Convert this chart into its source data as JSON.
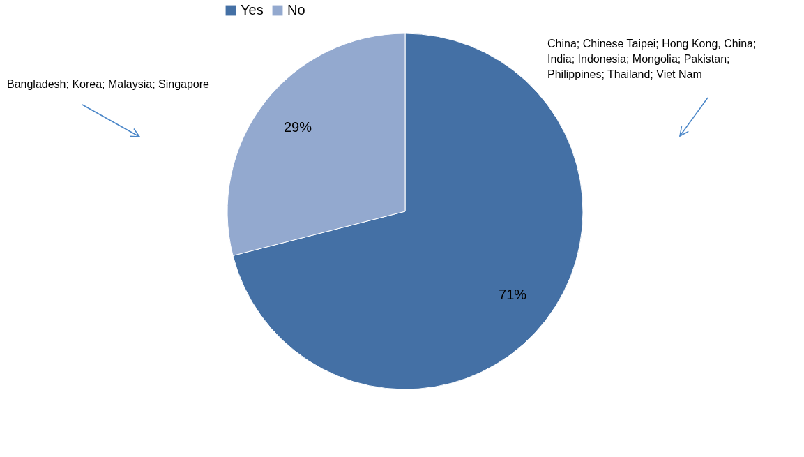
{
  "chart_data": {
    "type": "pie",
    "categories": [
      "Yes",
      "No"
    ],
    "values": [
      71,
      29
    ],
    "colors": [
      "#4470a5",
      "#93a9cf"
    ],
    "value_labels": [
      "71%",
      "29%"
    ],
    "legend": "top",
    "annotations": [
      "China; Chinese Taipei; Hong Kong, China; India; Indonesia; Mongolia; Pakistan; Philippines; Thailand; Viet Nam",
      "Bangladesh; Korea; Malaysia; Singapore"
    ]
  }
}
